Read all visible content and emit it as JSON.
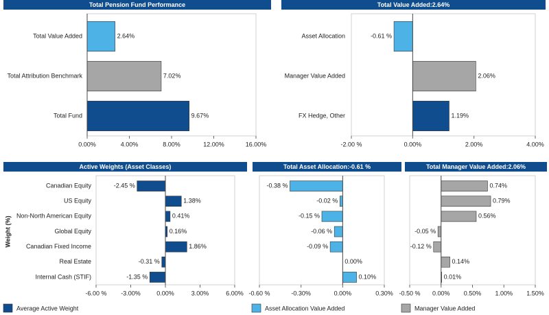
{
  "chart_data": [
    {
      "type": "hbar",
      "title": "Total Pension Fund Performance",
      "categories": [
        "Total Value Added",
        "Total Attribution Benchmark",
        "Total Fund"
      ],
      "values": [
        2.64,
        7.02,
        9.67
      ],
      "value_labels": [
        "2.64%",
        "7.02%",
        "9.67%"
      ],
      "colors": [
        "#4db3e6",
        "#a6a6a6",
        "#0f4d8f"
      ],
      "xlim": [
        0,
        16
      ],
      "xticks": [
        {
          "value": 0,
          "label": "0.00%"
        },
        {
          "value": 4,
          "label": "4.00%"
        },
        {
          "value": 8,
          "label": "8.00%"
        },
        {
          "value": 12,
          "label": "12.00%"
        },
        {
          "value": 16,
          "label": "16.00%"
        }
      ]
    },
    {
      "type": "hbar",
      "title": "Total Value Added:2.64%",
      "categories": [
        "Asset Allocation",
        "Manager Value Added",
        "FX Hedge, Other"
      ],
      "values": [
        -0.61,
        2.06,
        1.19
      ],
      "value_labels": [
        "-0.61 %",
        "2.06%",
        "1.19%"
      ],
      "colors": [
        "#4db3e6",
        "#a6a6a6",
        "#0f4d8f"
      ],
      "xlim": [
        -2,
        4
      ],
      "xticks": [
        {
          "value": -2,
          "label": "-2.00 %"
        },
        {
          "value": 0,
          "label": "0.00%"
        },
        {
          "value": 2,
          "label": "2.00%"
        },
        {
          "value": 4,
          "label": "4.00%"
        }
      ]
    },
    {
      "type": "hbar",
      "title": "Active Weights (Asset Classes)",
      "ylabel": "Weight (%)",
      "categories": [
        "Canadian Equity",
        "US Equity",
        "Non-North American Equity",
        "Global Equity",
        "Canadian Fixed Income",
        "Real Estate",
        "Internal Cash (STIF)"
      ],
      "series": [
        {
          "name": "Average Active Weight",
          "color": "#0f4d8f",
          "values": [
            -2.45,
            1.38,
            0.41,
            0.16,
            1.86,
            -0.31,
            -1.35
          ],
          "value_labels": [
            "-2.45 %",
            "1.38%",
            "0.41%",
            "0.16%",
            "1.86%",
            "-0.31 %",
            "-1.35 %"
          ]
        }
      ],
      "xlim": [
        -6,
        6
      ],
      "xticks": [
        {
          "value": -6,
          "label": "-6.00 %"
        },
        {
          "value": -3,
          "label": "-3.00%"
        },
        {
          "value": 0,
          "label": "0.00%"
        },
        {
          "value": 3,
          "label": "3.00%"
        },
        {
          "value": 6,
          "label": "6.00%"
        }
      ]
    },
    {
      "type": "hbar",
      "title": "Total Asset Allocation:-0.61 %",
      "series": [
        {
          "name": "Asset Allocation Value Added",
          "color": "#4db3e6",
          "values": [
            -0.38,
            -0.02,
            -0.15,
            -0.06,
            -0.09,
            0.0,
            0.1
          ],
          "value_labels": [
            "-0.38 %",
            "-0.02 %",
            "-0.15 %",
            "-0.06 %",
            "-0.09 %",
            "0.00%",
            "0.10%"
          ]
        }
      ],
      "xlim": [
        -0.6,
        0.3
      ],
      "xticks": [
        {
          "value": -0.6,
          "label": "-0.60 %"
        },
        {
          "value": -0.3,
          "label": "-0.30%"
        },
        {
          "value": 0,
          "label": "0.00%"
        },
        {
          "value": 0.3,
          "label": "0.30%"
        }
      ]
    },
    {
      "type": "hbar",
      "title": "Total Manager Value Added:2.06%",
      "series": [
        {
          "name": "Manager Value Added",
          "color": "#a6a6a6",
          "values": [
            0.74,
            0.79,
            0.56,
            -0.05,
            -0.12,
            0.14,
            0.01
          ],
          "value_labels": [
            "0.74%",
            "0.79%",
            "0.56%",
            "-0.05 %",
            "-0.12 %",
            "0.14%",
            "0.01%"
          ]
        }
      ],
      "xlim": [
        -0.5,
        1.5
      ],
      "xticks": [
        {
          "value": -0.5,
          "label": "-0.50 %"
        },
        {
          "value": 0,
          "label": "0.00%"
        },
        {
          "value": 0.5,
          "label": "0.50%"
        },
        {
          "value": 1,
          "label": "1.00%"
        },
        {
          "value": 1.5,
          "label": "1.50%"
        }
      ]
    }
  ]
}
